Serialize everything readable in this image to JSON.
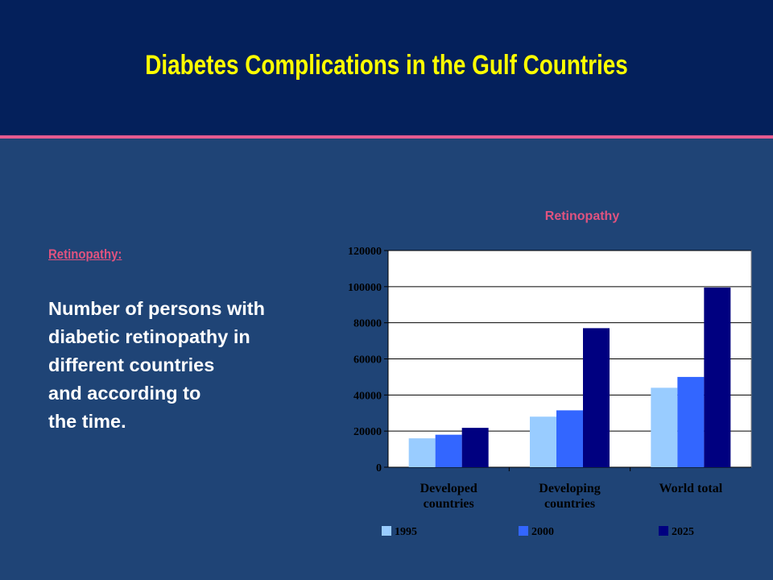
{
  "slide": {
    "title": "Diabetes Complications in the Gulf Countries",
    "heading": "Retinopathy:",
    "body": "Number of persons with\ndiabetic retinopathy in\ndifferent countries\nand according to\nthe time."
  },
  "colors": {
    "background": "#1f4476",
    "header": "#04205b",
    "header_rule": "#e65a90",
    "title": "#ffff00",
    "accent": "#e0537f",
    "series": [
      "#99ccff",
      "#3366ff",
      "#000080"
    ]
  },
  "chart_data": {
    "type": "bar",
    "title": "Retinopathy",
    "categories": [
      [
        "Developed",
        "countries"
      ],
      [
        "Developing",
        "countries"
      ],
      [
        "World total"
      ]
    ],
    "series": [
      {
        "name": "1995",
        "values": [
          16000,
          28000,
          44000
        ]
      },
      {
        "name": "2000",
        "values": [
          18000,
          31500,
          50000
        ]
      },
      {
        "name": "2025",
        "values": [
          21800,
          77000,
          99500
        ]
      }
    ],
    "ylim": [
      0,
      120000
    ],
    "yticks": [
      0,
      20000,
      40000,
      60000,
      80000,
      100000,
      120000
    ],
    "grid": true,
    "legend_position": "bottom"
  }
}
